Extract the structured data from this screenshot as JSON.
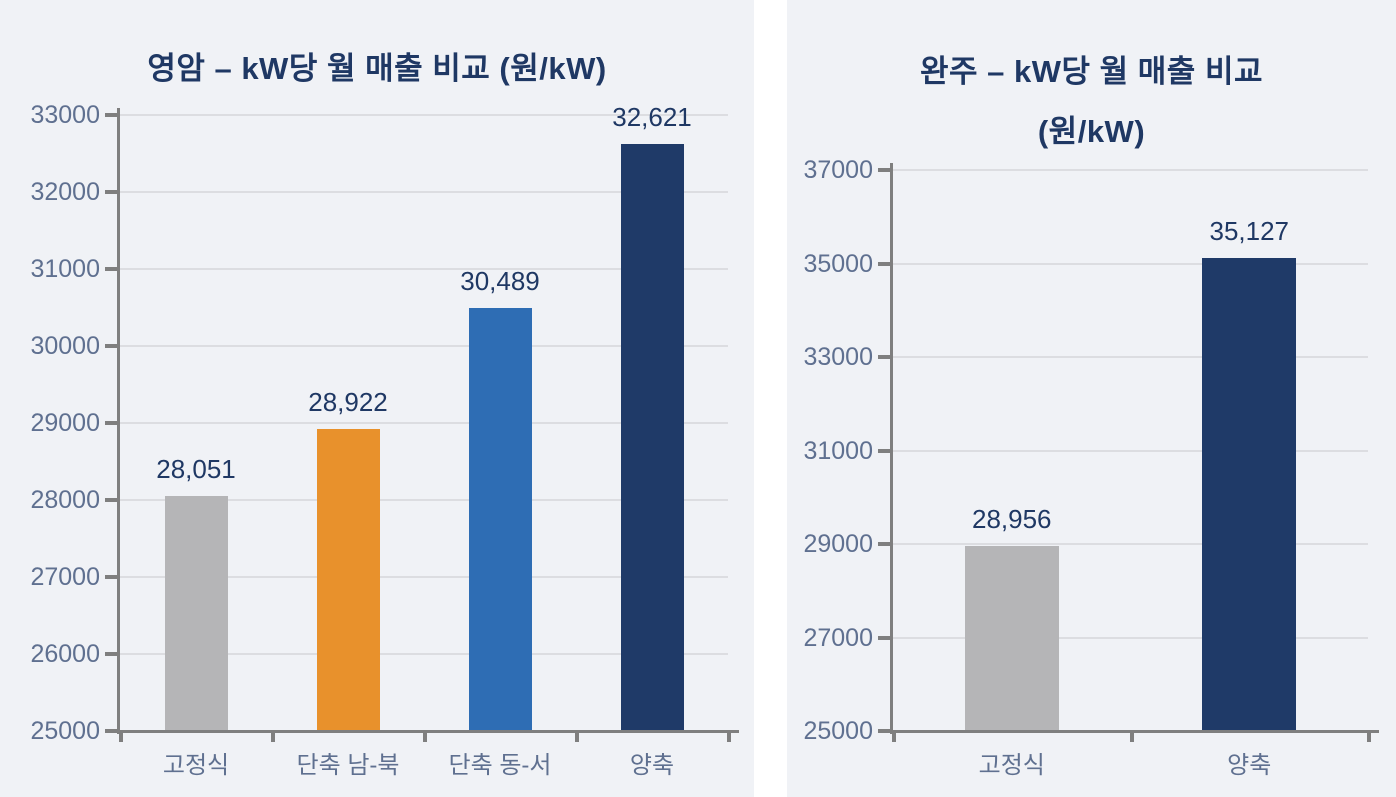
{
  "page": {
    "background": "#ffffff",
    "panel_background": "#f0f2f6",
    "gap_color": "#ffffff"
  },
  "colors": {
    "title": "#1f3864",
    "data_label": "#1f3864",
    "axis": "#7f7f7f",
    "gridline": "#dcdde1",
    "tick_label": "#5f7090",
    "bar_gray": "#b5b5b7",
    "bar_orange": "#e8912c",
    "bar_blue": "#2e6db4",
    "bar_navy": "#1f3a68"
  },
  "chart_data": [
    {
      "type": "bar",
      "title": "영암 – kW당 월 매출 비교 (원/kW)",
      "title_lines": [
        "영암 – kW당 월 매출 비교 (원/kW)"
      ],
      "categories": [
        "고정식",
        "단축 남-북",
        "단축 동-서",
        "양축"
      ],
      "values": [
        28051,
        28922,
        30489,
        32621
      ],
      "value_labels": [
        "28,051",
        "28,922",
        "30,489",
        "32,621"
      ],
      "bar_colors": [
        "#b5b5b7",
        "#e8912c",
        "#2e6db4",
        "#1f3a68"
      ],
      "xlabel": "",
      "ylabel": "",
      "ylim": [
        25000,
        33000
      ],
      "ytick_step": 1000,
      "yticks": [
        25000,
        26000,
        27000,
        28000,
        29000,
        30000,
        31000,
        32000,
        33000
      ],
      "grid": true,
      "legend": "none"
    },
    {
      "type": "bar",
      "title": "완주 – kW당 월 매출 비교 (원/kW)",
      "title_lines": [
        "완주 – kW당 월 매출 비교",
        "(원/kW)"
      ],
      "categories": [
        "고정식",
        "양축"
      ],
      "values": [
        28956,
        35127
      ],
      "value_labels": [
        "28,956",
        "35,127"
      ],
      "bar_colors": [
        "#b5b5b7",
        "#1f3a68"
      ],
      "xlabel": "",
      "ylabel": "",
      "ylim": [
        25000,
        37000
      ],
      "ytick_step": 2000,
      "yticks": [
        25000,
        27000,
        29000,
        31000,
        33000,
        35000,
        37000
      ],
      "grid": true,
      "legend": "none"
    }
  ]
}
